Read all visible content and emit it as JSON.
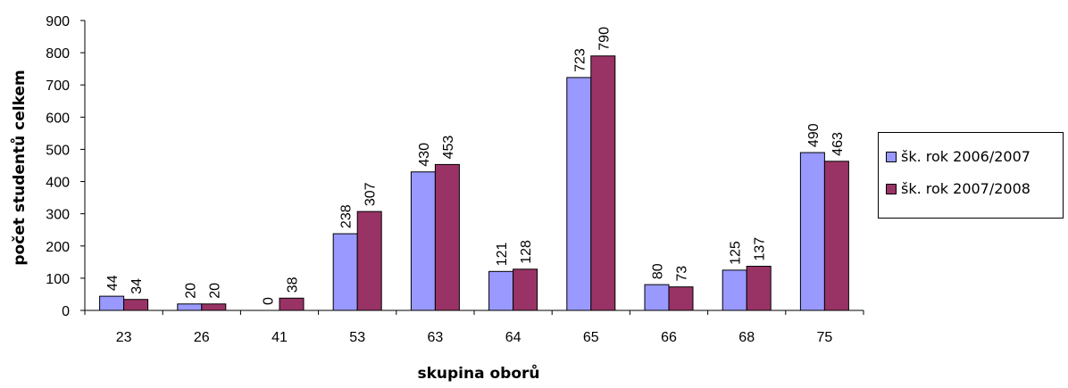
{
  "chart_data": {
    "type": "bar",
    "title": "",
    "xlabel": "skupina oborů",
    "ylabel": "počet studentů celkem",
    "ylim": [
      0,
      900
    ],
    "yticks": [
      0,
      100,
      200,
      300,
      400,
      500,
      600,
      700,
      800,
      900
    ],
    "categories": [
      "23",
      "26",
      "41",
      "53",
      "63",
      "64",
      "65",
      "66",
      "68",
      "75"
    ],
    "series": [
      {
        "name": "šk. rok 2006/2007",
        "color": "#9999ff",
        "values": [
          44,
          20,
          0,
          238,
          430,
          121,
          723,
          80,
          125,
          490
        ]
      },
      {
        "name": "šk. rok 2007/2008",
        "color": "#993366",
        "values": [
          34,
          20,
          38,
          307,
          453,
          128,
          790,
          73,
          137,
          463
        ]
      }
    ],
    "legend_position": "right",
    "grid": false,
    "data_labels": true
  }
}
